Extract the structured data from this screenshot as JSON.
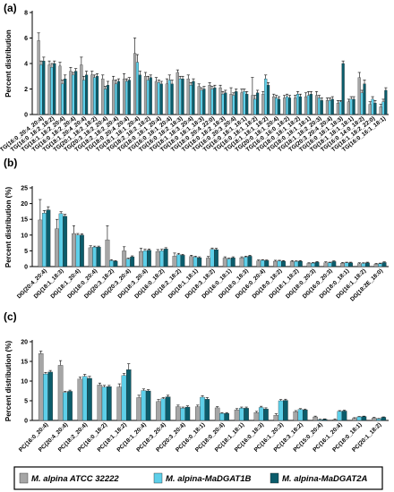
{
  "colors": {
    "s1": "#a6a6a6",
    "s2": "#5dcfe9",
    "s3": "#0b5c6b"
  },
  "legend": [
    {
      "label": "M. alpina ATCC 32222",
      "color": "#a6a6a6"
    },
    {
      "label": "M. alpina-MaDGAT1B",
      "color": "#5dcfe9"
    },
    {
      "label": "M. alpina-MaDGAT2A",
      "color": "#0b5c6b"
    }
  ],
  "chart_data": [
    {
      "type": "bar",
      "panel": "(a)",
      "ylabel": "Percent distribution",
      "ylim": [
        0,
        8
      ],
      "yticks": [
        0,
        2,
        4,
        6,
        8
      ],
      "categories": [
        "TG(16:0_20:4_20:4)",
        "TG(16:0_18:2_18:2)",
        "TG(18:1_18:2_20:4)",
        "TG(16:0_18:2_20:4)",
        "TG(18:1_20:4_20:4)",
        "TG(20:1_18:2_18:2)",
        "TG(20:3_18:2_20:4)",
        "TG(18:2_18:2_20:4)",
        "TG(18:0_20:4_20:4)",
        "TG(18:1_18:1_20:4)",
        "TG(18:2_18:2_18:2)",
        "TG(18:0_18:1_20:4)",
        "TG(16:0_18:1_20:4)",
        "TG(16:0_18:2_18:3)",
        "TG(18:1_18:3_20:4)",
        "TG(18:0_18:1_18:3)",
        "TG(18:0_20:4_22:0)",
        "TG(18:0_18:2_18:3)",
        "TG(16:0_20:3_20:4)",
        "TG(16:0_18:1_18:1)",
        "TG(16:0_18:1_18:2)",
        "TG(18:1_18:1_18:2)",
        "TG(20:0_18:1_20:4)",
        "TG(16:0_16:0_18:2)",
        "TG(18:0_18:1_18:2)",
        "TG(18:0_18:1_18:1)",
        "TG(18:1_18:2_20:3)",
        "TG(20:3_20:4_20:4)",
        "TG(16:0_18:1_18:3)",
        "TG(18:1_18:1_18:1)",
        "TG(16:0_14:0_18:2)",
        "TG(18:1_18:2_22:0)",
        "TG(16:0_16:1_18:1)"
      ],
      "series": [
        {
          "name": "M. alpina ATCC 32222",
          "values": [
            5.8,
            3.9,
            3.8,
            3.4,
            3.9,
            3.1,
            2.8,
            2.7,
            2.8,
            4.8,
            3.0,
            2.6,
            2.4,
            3.3,
            2.8,
            2.2,
            2.3,
            2.1,
            1.6,
            1.7,
            1.5,
            1.6,
            1.4,
            1.3,
            1.3,
            1.4,
            1.5,
            1.1,
            0.9,
            1.0,
            2.9,
            0.8,
            0.6
          ],
          "errors": [
            0.6,
            0.3,
            0.3,
            0.3,
            0.6,
            0.3,
            0.3,
            0.3,
            0.4,
            1.2,
            0.3,
            0.3,
            0.4,
            0.2,
            0.3,
            0.2,
            0.2,
            0.2,
            0.5,
            0.3,
            1.4,
            0.2,
            0.2,
            0.2,
            0.2,
            0.3,
            0.3,
            0.2,
            0.2,
            0.2,
            0.4,
            0.2,
            0.2
          ]
        },
        {
          "name": "M. alpina-MaDGAT1B",
          "values": [
            3.9,
            3.7,
            2.4,
            3.1,
            2.7,
            2.9,
            2.0,
            2.4,
            2.6,
            4.1,
            2.7,
            2.5,
            2.7,
            2.8,
            2.3,
            1.9,
            2.0,
            1.6,
            1.5,
            1.8,
            1.2,
            2.8,
            1.3,
            1.4,
            1.6,
            1.5,
            1.3,
            1.1,
            1.0,
            1.2,
            1.7,
            1.2,
            1.0
          ],
          "errors": [
            0.3,
            0.3,
            0.3,
            0.2,
            0.3,
            0.2,
            0.2,
            0.3,
            0.2,
            0.6,
            0.3,
            0.2,
            0.4,
            0.2,
            0.2,
            0.2,
            0.2,
            0.2,
            0.2,
            0.2,
            0.3,
            0.3,
            0.2,
            0.2,
            0.2,
            0.3,
            0.2,
            0.2,
            0.1,
            0.2,
            0.2,
            0.2,
            0.2
          ]
        },
        {
          "name": "M. alpina-MaDGAT2A",
          "values": [
            4.2,
            4.0,
            2.8,
            3.4,
            3.1,
            3.0,
            2.3,
            2.6,
            2.7,
            3.1,
            2.9,
            2.4,
            2.4,
            2.8,
            2.6,
            2.0,
            2.1,
            1.7,
            1.8,
            1.6,
            1.7,
            2.3,
            1.2,
            1.3,
            1.4,
            1.6,
            1.1,
            1.2,
            4.0,
            1.2,
            2.4,
            0.9,
            1.9
          ],
          "errors": [
            0.3,
            0.2,
            0.3,
            0.2,
            0.3,
            0.2,
            0.3,
            0.2,
            0.2,
            0.3,
            0.2,
            0.2,
            0.3,
            0.2,
            0.2,
            0.2,
            0.2,
            0.2,
            0.2,
            0.2,
            0.2,
            0.2,
            0.2,
            0.2,
            0.2,
            0.2,
            0.2,
            0.2,
            0.2,
            0.2,
            0.3,
            0.2,
            0.2
          ]
        }
      ]
    },
    {
      "type": "bar",
      "panel": "(b)",
      "ylabel": "Percent distribution (%)",
      "ylim": [
        0,
        25
      ],
      "yticks": [
        0,
        5,
        10,
        15,
        20,
        25
      ],
      "categories": [
        "DG(20:4_20:4)",
        "DG(18:1_18:3)",
        "DG(18:1_20:4)",
        "DG(18:0_20:4)",
        "DG(20:3_18:2)",
        "DG(20:3_20:4)",
        "DG(18:3_20:4)",
        "DG(16:0_18:2)",
        "DG(18:2_18:2)",
        "DG(18:1_18:1)",
        "DG(18:3_18:2)",
        "DG(16:0_18:1)",
        "DG(18:0_18:3)",
        "DG(16:0_20:4)",
        "DG(18:0_18:2)",
        "DG(18:1_18:2)",
        "DG(18:0_20:3)",
        "DG(16:0_20:3)",
        "DG(18:0_18:1)",
        "DG(16:1_18:2)",
        "DG(18:2E_18:0)"
      ],
      "series": [
        {
          "name": "M. alpina ATCC 32222",
          "values": [
            14.8,
            12.0,
            10.5,
            6.0,
            8.5,
            5.0,
            4.8,
            4.8,
            3.3,
            3.2,
            2.7,
            2.7,
            2.8,
            1.8,
            1.7,
            1.6,
            1.0,
            1.2,
            1.1,
            0.9,
            0.8
          ],
          "errors": [
            6.5,
            3.0,
            2.5,
            0.6,
            4.5,
            1.3,
            1.0,
            0.6,
            1.0,
            0.4,
            0.5,
            0.4,
            0.3,
            0.3,
            0.3,
            0.3,
            0.2,
            0.3,
            0.2,
            0.3,
            0.2
          ]
        },
        {
          "name": "M. alpina-MaDGAT1B",
          "values": [
            17.0,
            16.8,
            10.0,
            6.2,
            1.9,
            2.4,
            5.0,
            5.0,
            3.8,
            3.0,
            5.5,
            2.4,
            3.0,
            2.0,
            1.8,
            1.6,
            1.1,
            1.2,
            1.2,
            1.0,
            0.9
          ],
          "errors": [
            0.8,
            0.6,
            0.5,
            0.3,
            0.3,
            0.3,
            0.5,
            0.5,
            0.4,
            0.3,
            0.4,
            0.3,
            0.3,
            0.2,
            0.2,
            0.2,
            0.2,
            0.2,
            0.2,
            0.2,
            0.2
          ]
        },
        {
          "name": "M. alpina-MaDGAT2A",
          "values": [
            18.0,
            16.0,
            10.0,
            6.2,
            1.7,
            3.1,
            5.2,
            5.6,
            3.6,
            2.8,
            5.4,
            2.8,
            3.3,
            1.9,
            1.7,
            1.7,
            1.4,
            1.6,
            1.2,
            1.2,
            1.3
          ],
          "errors": [
            1.0,
            0.6,
            0.4,
            0.3,
            0.2,
            0.3,
            0.4,
            0.4,
            0.3,
            0.3,
            0.4,
            0.3,
            0.3,
            0.2,
            0.2,
            0.2,
            0.2,
            0.2,
            0.2,
            0.2,
            0.2
          ]
        }
      ]
    },
    {
      "type": "bar",
      "panel": "(c)",
      "ylabel": "Percent distribution (%)",
      "ylim": [
        0,
        20
      ],
      "yticks": [
        0,
        5,
        10,
        15,
        20
      ],
      "categories": [
        "PC(16:0_20:4)",
        "PC(20:4_20:4)",
        "PC(18:2_20:4)",
        "PC(16:0_18:2)",
        "PC(18:1_18:2)",
        "PC(18:1_20:4)",
        "PC(18:3_20:4)",
        "PC(20:3_20:4)",
        "PC(16:0_18:1)",
        "PC(18:0_20:4)",
        "PC(18:1_18:1)",
        "PC(16:0_18:3)",
        "PC(16:1_20:3)",
        "PC(18:3_18:2)",
        "PC(15:0_20:4)",
        "PC(16:1_20:4)",
        "PC(18:0_18:1)",
        "PC(20:1_18:2)"
      ],
      "series": [
        {
          "name": "M. alpina ATCC 32222",
          "values": [
            17.0,
            14.0,
            10.5,
            9.0,
            8.5,
            5.8,
            4.8,
            3.5,
            3.5,
            3.2,
            2.7,
            2.0,
            1.3,
            2.2,
            0.9,
            0.2,
            0.5,
            0.6
          ],
          "errors": [
            0.6,
            1.2,
            0.5,
            0.5,
            0.8,
            0.6,
            0.5,
            0.4,
            0.4,
            0.3,
            0.3,
            0.3,
            0.4,
            0.3,
            0.2,
            0.2,
            0.2,
            0.2
          ]
        },
        {
          "name": "M. alpina-MaDGAT1B",
          "values": [
            11.8,
            7.1,
            11.2,
            8.5,
            11.4,
            7.6,
            5.5,
            3.1,
            5.9,
            1.8,
            3.1,
            3.3,
            5.0,
            2.8,
            0.2,
            2.3,
            0.9,
            0.4
          ],
          "errors": [
            0.4,
            0.3,
            0.5,
            0.4,
            0.5,
            0.4,
            0.3,
            0.3,
            0.4,
            0.2,
            0.3,
            0.3,
            0.3,
            0.2,
            0.1,
            0.2,
            0.1,
            0.1
          ]
        },
        {
          "name": "M. alpina-MaDGAT2A",
          "values": [
            12.3,
            7.4,
            10.7,
            8.6,
            12.9,
            7.5,
            6.0,
            3.4,
            5.4,
            1.8,
            3.1,
            2.9,
            5.1,
            2.7,
            0.3,
            2.4,
            1.0,
            0.8
          ],
          "errors": [
            0.4,
            0.3,
            0.5,
            0.3,
            1.5,
            0.3,
            0.4,
            0.3,
            0.4,
            0.2,
            0.3,
            0.3,
            0.3,
            0.2,
            0.1,
            0.2,
            0.1,
            0.1
          ]
        }
      ]
    }
  ]
}
